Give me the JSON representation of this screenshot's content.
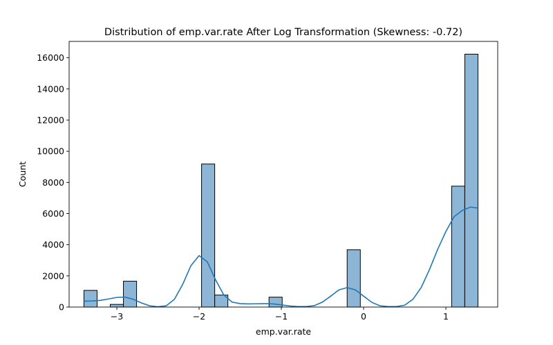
{
  "chart_data": {
    "type": "histogram",
    "title": "Distribution of emp.var.rate After Log Transformation (Skewness: -0.72)",
    "xlabel": "emp.var.rate",
    "ylabel": "Count",
    "xlim": [
      -3.58,
      1.63
    ],
    "ylim": [
      0,
      17050
    ],
    "xticks": [
      -3,
      -2,
      -1,
      0,
      1
    ],
    "xtick_labels": [
      "−3",
      "−2",
      "−1",
      "0",
      "1"
    ],
    "yticks": [
      0,
      2000,
      4000,
      6000,
      8000,
      10000,
      12000,
      14000,
      16000
    ],
    "ytick_labels": [
      "0",
      "2000",
      "4000",
      "6000",
      "8000",
      "10000",
      "12000",
      "14000",
      "16000"
    ],
    "grid": false,
    "bar_color": "#8db6d6",
    "bar_edge_color": "#000000",
    "kde_color": "#1f77b4",
    "bins": [
      {
        "x0": -3.4,
        "x1": -3.24,
        "count": 1070
      },
      {
        "x0": -3.08,
        "x1": -2.92,
        "count": 170
      },
      {
        "x0": -2.92,
        "x1": -2.76,
        "count": 1660
      },
      {
        "x0": -1.97,
        "x1": -1.81,
        "count": 9180
      },
      {
        "x0": -1.81,
        "x1": -1.65,
        "count": 770
      },
      {
        "x0": -1.15,
        "x1": -0.99,
        "count": 635
      },
      {
        "x0": -0.2,
        "x1": -0.04,
        "count": 3680
      },
      {
        "x0": 1.07,
        "x1": 1.23,
        "count": 7760
      },
      {
        "x0": 1.23,
        "x1": 1.39,
        "count": 16230
      }
    ],
    "kde": {
      "x": [
        -3.4,
        -3.3,
        -3.2,
        -3.1,
        -3.0,
        -2.9,
        -2.8,
        -2.7,
        -2.6,
        -2.5,
        -2.4,
        -2.3,
        -2.2,
        -2.1,
        -2.0,
        -1.9,
        -1.8,
        -1.7,
        -1.6,
        -1.5,
        -1.4,
        -1.3,
        -1.2,
        -1.1,
        -1.0,
        -0.9,
        -0.8,
        -0.7,
        -0.6,
        -0.5,
        -0.4,
        -0.3,
        -0.2,
        -0.1,
        0.0,
        0.1,
        0.2,
        0.3,
        0.4,
        0.5,
        0.6,
        0.7,
        0.8,
        0.9,
        1.0,
        1.1,
        1.2,
        1.3,
        1.39
      ],
      "y": [
        380,
        390,
        430,
        520,
        620,
        640,
        500,
        260,
        80,
        20,
        80,
        500,
        1450,
        2650,
        3300,
        2900,
        1750,
        780,
        320,
        220,
        200,
        210,
        220,
        200,
        140,
        70,
        30,
        30,
        90,
        320,
        700,
        1100,
        1250,
        1100,
        700,
        300,
        80,
        30,
        30,
        120,
        500,
        1250,
        2400,
        3700,
        4850,
        5800,
        6200,
        6420,
        6350
      ]
    }
  }
}
